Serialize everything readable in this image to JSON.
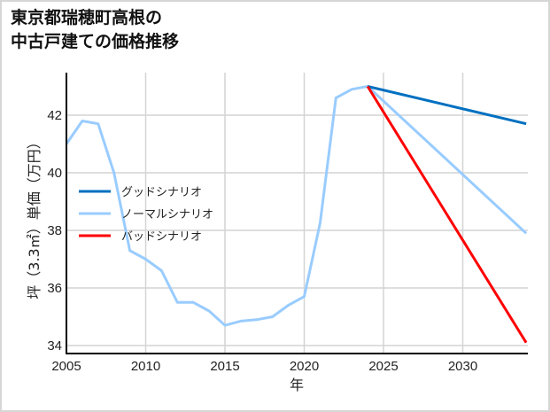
{
  "title_lines": [
    "東京都瑞穂町高根の",
    "中古戸建ての価格推移"
  ],
  "chart_data": {
    "type": "line",
    "title": "東京都瑞穂町高根の中古戸建ての価格推移",
    "xlabel": "年",
    "ylabel": "坪（3.3㎡）単価（万円）",
    "xlim": [
      2005,
      2034
    ],
    "ylim": [
      33.7,
      43.5
    ],
    "xticks": [
      2005,
      2010,
      2015,
      2020,
      2025,
      2030
    ],
    "yticks": [
      34,
      36,
      38,
      40,
      42
    ],
    "grid": true,
    "legend_position": "center-left",
    "series": [
      {
        "name": "グッドシナリオ",
        "color": "#0070c0",
        "x": [
          2024,
          2034
        ],
        "values": [
          43.0,
          41.7
        ]
      },
      {
        "name": "ノーマルシナリオ",
        "color": "#99ccff",
        "x": [
          2005,
          2006,
          2007,
          2008,
          2009,
          2010,
          2011,
          2012,
          2013,
          2014,
          2015,
          2016,
          2017,
          2018,
          2019,
          2020,
          2021,
          2022,
          2023,
          2024,
          2034
        ],
        "values": [
          41.0,
          41.8,
          41.7,
          40.0,
          37.3,
          37.0,
          36.6,
          35.5,
          35.5,
          35.2,
          34.7,
          34.85,
          34.9,
          35.0,
          35.4,
          35.7,
          38.25,
          42.6,
          42.9,
          43.0,
          37.9
        ]
      },
      {
        "name": "バッドシナリオ",
        "color": "#ff0000",
        "x": [
          2024,
          2034
        ],
        "values": [
          43.0,
          34.1
        ]
      }
    ]
  }
}
